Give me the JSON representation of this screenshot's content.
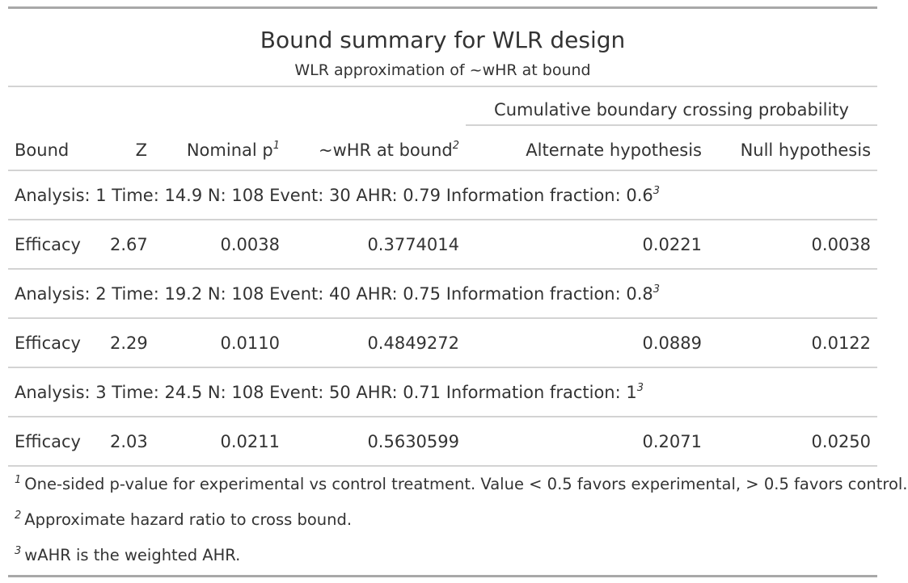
{
  "title": "Bound summary for WLR design",
  "subtitle": "WLR approximation of ~wHR at bound",
  "spanner_label": "Cumulative boundary crossing probability",
  "columns": {
    "bound": "Bound",
    "z": "Z",
    "nominal_p": "Nominal p",
    "nominal_p_mark": "1",
    "whr": "~wHR at bound",
    "whr_mark": "2",
    "alternate": "Alternate hypothesis",
    "null": "Null hypothesis"
  },
  "groups": [
    {
      "label": "Analysis: 1 Time: 14.9 N: 108 Event: 30 AHR: 0.79 Information fraction: 0.6",
      "mark": "3",
      "row": {
        "bound": "Efficacy",
        "z": "2.67",
        "nominal_p": "0.0038",
        "whr": "0.3774014",
        "alternate": "0.0221",
        "null": "0.0038"
      }
    },
    {
      "label": "Analysis: 2 Time: 19.2 N: 108 Event: 40 AHR: 0.75 Information fraction: 0.8",
      "mark": "3",
      "row": {
        "bound": "Efficacy",
        "z": "2.29",
        "nominal_p": "0.0110",
        "whr": "0.4849272",
        "alternate": "0.0889",
        "null": "0.0122"
      }
    },
    {
      "label": "Analysis: 3 Time: 24.5 N: 108 Event: 50 AHR: 0.71 Information fraction: 1",
      "mark": "3",
      "row": {
        "bound": "Efficacy",
        "z": "2.03",
        "nominal_p": "0.0211",
        "whr": "0.5630599",
        "alternate": "0.2071",
        "null": "0.0250"
      }
    }
  ],
  "footnotes": [
    {
      "mark": "1",
      "text": "One-sided p-value for experimental vs control treatment. Value < 0.5 favors experimental, > 0.5 favors control."
    },
    {
      "mark": "2",
      "text": "Approximate hazard ratio to cross bound."
    },
    {
      "mark": "3",
      "text": "wAHR is the weighted AHR."
    }
  ]
}
